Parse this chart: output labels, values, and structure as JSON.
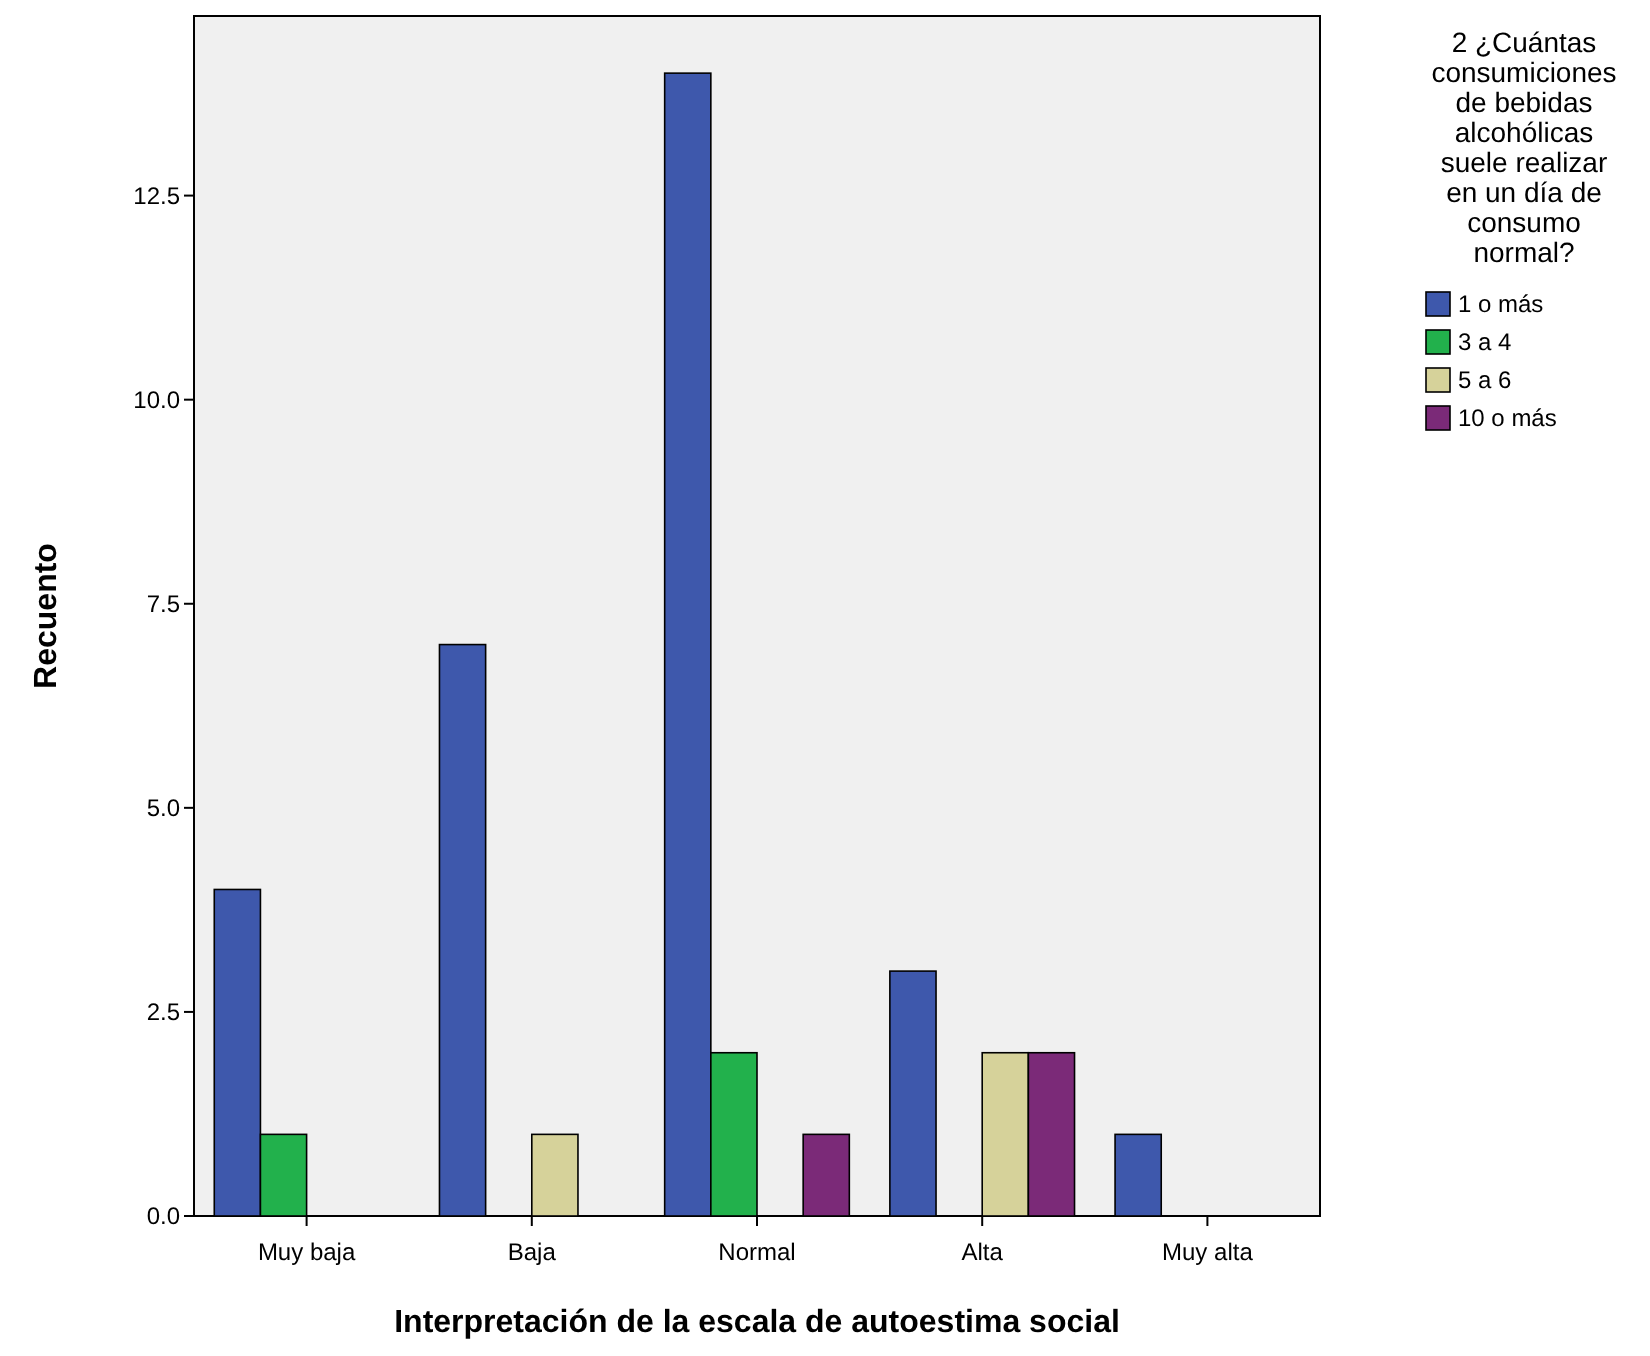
{
  "chart_data": {
    "type": "bar",
    "xlabel": "Interpretación de la escala de autoestima social",
    "ylabel": "Recuento",
    "legend_title": "2 ¿Cuántas consumiciones de bebidas alcohólicas suele realizar en un día de consumo normal?",
    "legend": "top right",
    "grid": false,
    "categories": [
      "Muy baja",
      "Baja",
      "Normal",
      "Alta",
      "Muy alta"
    ],
    "ylim": [
      0,
      14.7
    ],
    "yticks": [
      {
        "value": 0,
        "label": "0.0"
      },
      {
        "value": 2.5,
        "label": "2.5"
      },
      {
        "value": 5,
        "label": "5.0"
      },
      {
        "value": 7.5,
        "label": "7.5"
      },
      {
        "value": 10,
        "label": "10.0"
      },
      {
        "value": 12.5,
        "label": "12.5"
      }
    ],
    "series": [
      {
        "name": "1 o más",
        "color": "#3e58ac",
        "values": [
          4,
          7,
          14,
          3,
          1
        ]
      },
      {
        "name": "3 a 4",
        "color": "#22b14c",
        "values": [
          1,
          null,
          2,
          null,
          null
        ]
      },
      {
        "name": "5 a 6",
        "color": "#d6d29a",
        "values": [
          null,
          1,
          null,
          2,
          null
        ]
      },
      {
        "name": "10 o más",
        "color": "#7b2a78",
        "values": [
          null,
          null,
          1,
          2,
          null
        ]
      }
    ]
  }
}
